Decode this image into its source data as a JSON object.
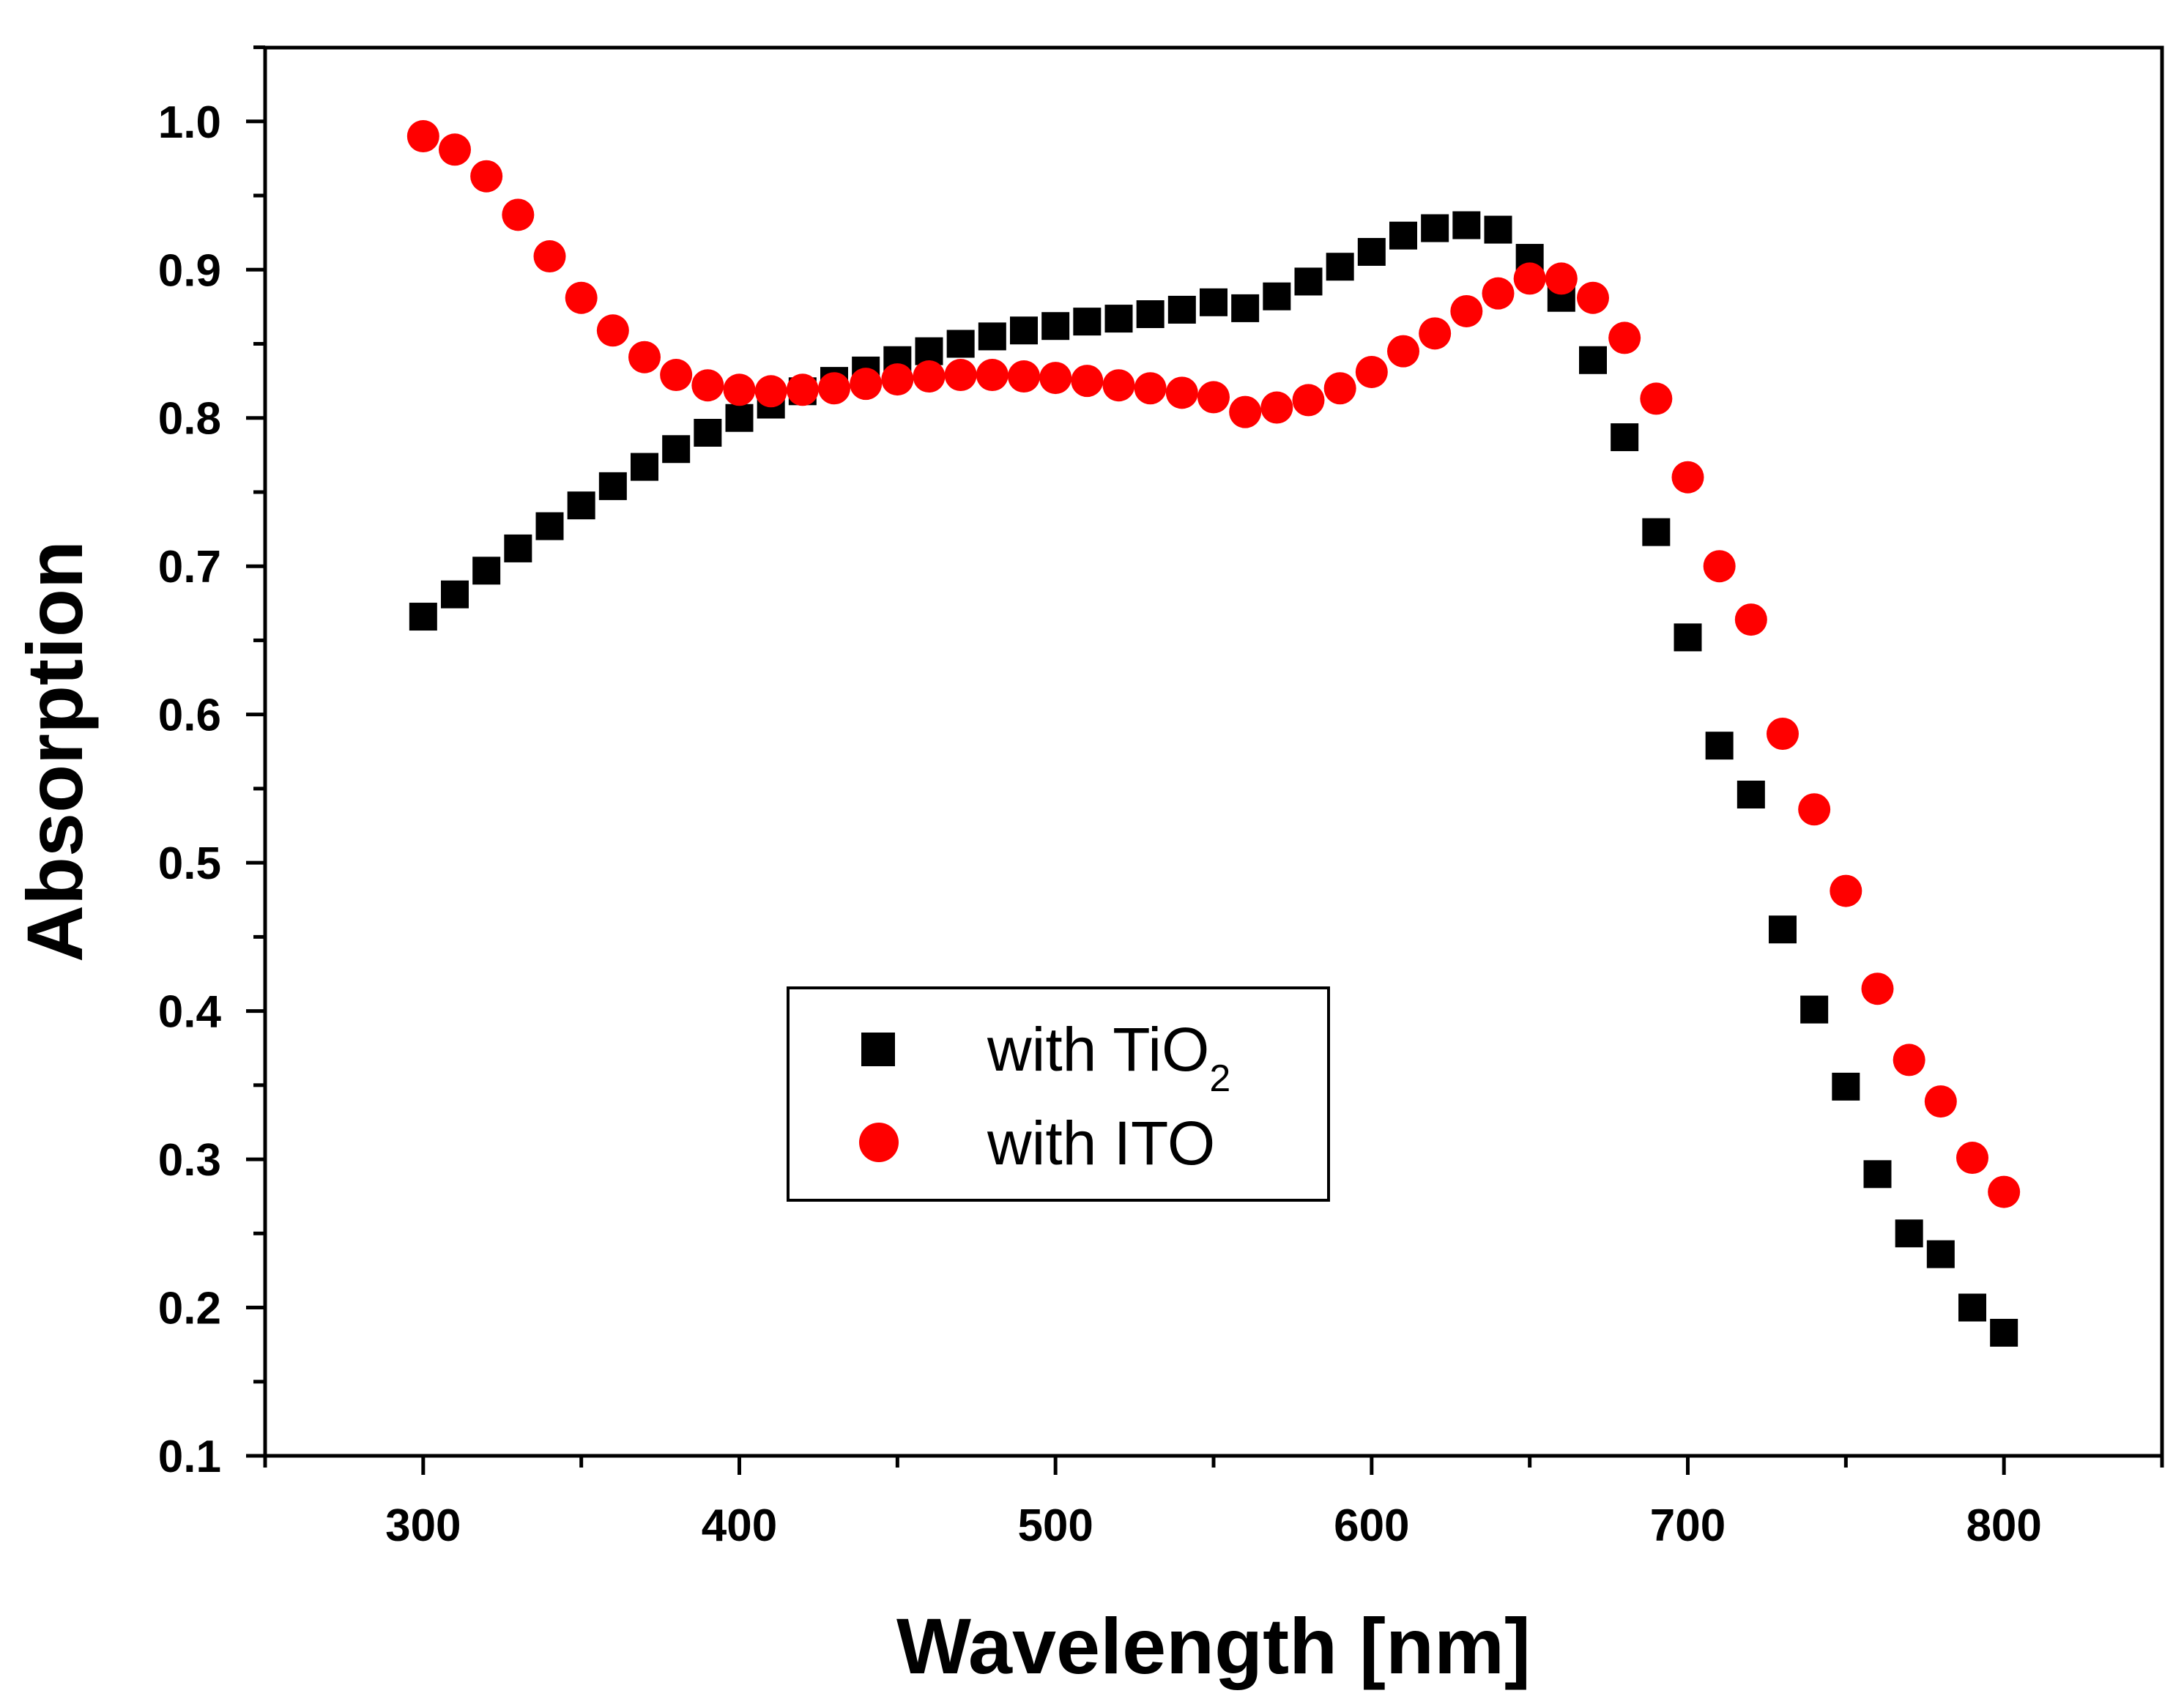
{
  "chart_data": {
    "type": "scatter",
    "title": "",
    "xlabel": "Wavelength [nm]",
    "ylabel": "Absorption",
    "xlim": [
      250,
      850
    ],
    "ylim": [
      0.1,
      1.05
    ],
    "xticks": [
      300,
      400,
      500,
      600,
      700,
      800
    ],
    "xtick_labels": [
      "300",
      "400",
      "500",
      "600",
      "700",
      "800"
    ],
    "yticks": [
      0.1,
      0.2,
      0.3,
      0.4,
      0.5,
      0.6,
      0.7,
      0.8,
      0.9,
      1.0
    ],
    "ytick_labels": [
      "0.1",
      "0.2",
      "0.3",
      "0.4",
      "0.5",
      "0.6",
      "0.7",
      "0.8",
      "0.9",
      "1.0"
    ],
    "grid": false,
    "legend_position": "center",
    "x": [
      300,
      310,
      320,
      330,
      340,
      350,
      360,
      370,
      380,
      390,
      400,
      410,
      420,
      430,
      440,
      450,
      460,
      470,
      480,
      490,
      500,
      510,
      520,
      530,
      540,
      550,
      560,
      570,
      580,
      590,
      600,
      610,
      620,
      630,
      640,
      650,
      660,
      670,
      680,
      690,
      700,
      710,
      720,
      730,
      740,
      750,
      760,
      770,
      780,
      790,
      800
    ],
    "series": [
      {
        "name": "with TiO2",
        "legend_main": "with TiO",
        "legend_sub": "2",
        "marker": "square",
        "color": "#000000",
        "values": [
          0.666,
          0.681,
          0.697,
          0.712,
          0.727,
          0.741,
          0.754,
          0.767,
          0.779,
          0.79,
          0.8,
          0.809,
          0.818,
          0.825,
          0.832,
          0.839,
          0.845,
          0.85,
          0.855,
          0.859,
          0.862,
          0.865,
          0.867,
          0.87,
          0.873,
          0.878,
          0.874,
          0.882,
          0.892,
          0.902,
          0.912,
          0.923,
          0.928,
          0.93,
          0.927,
          0.908,
          0.881,
          0.839,
          0.787,
          0.723,
          0.652,
          0.579,
          0.546,
          0.455,
          0.401,
          0.349,
          0.29,
          0.25,
          0.236,
          0.2,
          0.183
        ]
      },
      {
        "name": "with ITO",
        "legend_main": "with ITO",
        "marker": "circle",
        "color": "#ff0000",
        "values": [
          0.99,
          0.981,
          0.963,
          0.937,
          0.909,
          0.881,
          0.859,
          0.841,
          0.829,
          0.822,
          0.819,
          0.818,
          0.819,
          0.82,
          0.823,
          0.826,
          0.828,
          0.829,
          0.829,
          0.828,
          0.827,
          0.825,
          0.822,
          0.82,
          0.817,
          0.814,
          0.804,
          0.807,
          0.812,
          0.82,
          0.831,
          0.845,
          0.857,
          0.872,
          0.884,
          0.894,
          0.894,
          0.881,
          0.854,
          0.813,
          0.76,
          0.7,
          0.664,
          0.587,
          0.536,
          0.481,
          0.415,
          0.367,
          0.339,
          0.301,
          0.278
        ]
      }
    ]
  }
}
